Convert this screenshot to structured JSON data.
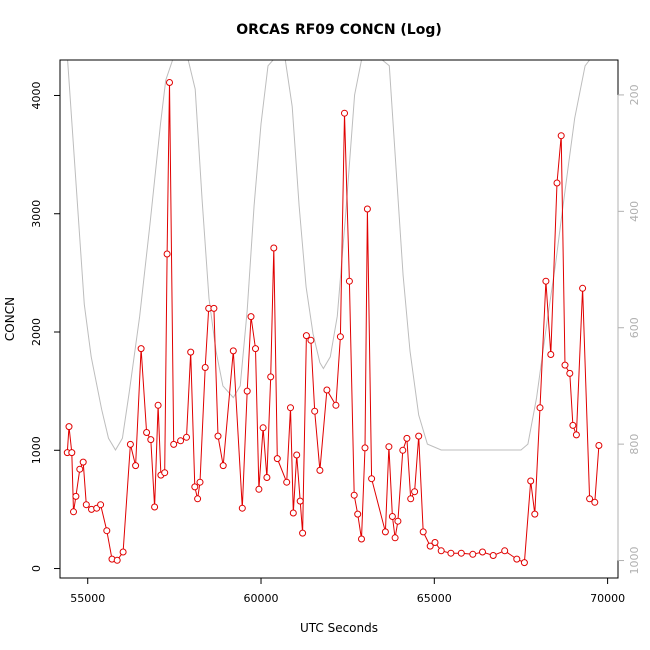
{
  "chart_data": {
    "type": "line",
    "title": "ORCAS RF09 CONCN (Log)",
    "xlabel": "UTC Seconds",
    "ylabel": "CONCN",
    "xlim": [
      54200,
      70300
    ],
    "ylim": [
      -80,
      4300
    ],
    "y2lim_top_to_bottom": [
      140,
      1030
    ],
    "x_ticks": [
      55000,
      60000,
      65000,
      70000
    ],
    "y_ticks": [
      0,
      1000,
      2000,
      3000,
      4000
    ],
    "y2_ticks": [
      200,
      400,
      600,
      800,
      1000
    ],
    "colors": {
      "primary": "#e00000",
      "secondary": "#bdbdbd",
      "axis": "#000000",
      "y2_axis": "#b0b0b0"
    },
    "series": [
      {
        "values": [
          [
            54410,
            980
          ],
          [
            54460,
            1200
          ],
          [
            54540,
            980
          ],
          [
            54590,
            480
          ],
          [
            54660,
            610
          ],
          [
            54770,
            840
          ],
          [
            54870,
            900
          ],
          [
            54960,
            540
          ],
          [
            55110,
            500
          ],
          [
            55260,
            510
          ],
          [
            55370,
            540
          ],
          [
            55550,
            320
          ],
          [
            55700,
            80
          ],
          [
            55850,
            70
          ],
          [
            56020,
            140
          ],
          [
            56230,
            1050
          ],
          [
            56380,
            870
          ],
          [
            56540,
            1860
          ],
          [
            56700,
            1150
          ],
          [
            56820,
            1090
          ],
          [
            56930,
            520
          ],
          [
            57030,
            1380
          ],
          [
            57110,
            790
          ],
          [
            57220,
            810
          ],
          [
            57290,
            2660
          ],
          [
            57360,
            4110
          ],
          [
            57480,
            1050
          ],
          [
            57680,
            1080
          ],
          [
            57850,
            1110
          ],
          [
            57970,
            1830
          ],
          [
            58090,
            690
          ],
          [
            58170,
            590
          ],
          [
            58240,
            730
          ],
          [
            58390,
            1700
          ],
          [
            58490,
            2200
          ],
          [
            58640,
            2200
          ],
          [
            58760,
            1120
          ],
          [
            58910,
            870
          ],
          [
            59200,
            1840
          ],
          [
            59460,
            510
          ],
          [
            59600,
            1500
          ],
          [
            59710,
            2130
          ],
          [
            59840,
            1860
          ],
          [
            59940,
            670
          ],
          [
            60060,
            1190
          ],
          [
            60170,
            770
          ],
          [
            60280,
            1620
          ],
          [
            60370,
            2710
          ],
          [
            60470,
            930
          ],
          [
            60740,
            730
          ],
          [
            60850,
            1360
          ],
          [
            60930,
            470
          ],
          [
            61030,
            960
          ],
          [
            61130,
            570
          ],
          [
            61200,
            300
          ],
          [
            61310,
            1970
          ],
          [
            61440,
            1930
          ],
          [
            61550,
            1330
          ],
          [
            61700,
            830
          ],
          [
            61900,
            1510
          ],
          [
            62160,
            1380
          ],
          [
            62290,
            1960
          ],
          [
            62410,
            3850
          ],
          [
            62550,
            2430
          ],
          [
            62690,
            620
          ],
          [
            62790,
            460
          ],
          [
            62900,
            250
          ],
          [
            63000,
            1020
          ],
          [
            63070,
            3040
          ],
          [
            63190,
            760
          ],
          [
            63590,
            310
          ],
          [
            63690,
            1030
          ],
          [
            63790,
            440
          ],
          [
            63870,
            260
          ],
          [
            63950,
            400
          ],
          [
            64090,
            1000
          ],
          [
            64210,
            1100
          ],
          [
            64320,
            590
          ],
          [
            64430,
            650
          ],
          [
            64550,
            1120
          ],
          [
            64680,
            310
          ],
          [
            64880,
            190
          ],
          [
            65020,
            220
          ],
          [
            65200,
            150
          ],
          [
            65480,
            130
          ],
          [
            65780,
            130
          ],
          [
            66110,
            120
          ],
          [
            66390,
            140
          ],
          [
            66700,
            110
          ],
          [
            67030,
            150
          ],
          [
            67380,
            80
          ],
          [
            67600,
            50
          ],
          [
            67780,
            740
          ],
          [
            67900,
            460
          ],
          [
            68050,
            1360
          ],
          [
            68220,
            2430
          ],
          [
            68360,
            1810
          ],
          [
            68540,
            3260
          ],
          [
            68660,
            3660
          ],
          [
            68770,
            1720
          ],
          [
            68910,
            1650
          ],
          [
            69000,
            1210
          ],
          [
            69100,
            1130
          ],
          [
            69280,
            2370
          ],
          [
            69480,
            590
          ],
          [
            69630,
            560
          ],
          [
            69750,
            1040
          ]
        ]
      },
      {
        "values": [
          [
            54420,
            140
          ],
          [
            54900,
            560
          ],
          [
            55100,
            650
          ],
          [
            55400,
            740
          ],
          [
            55600,
            790
          ],
          [
            55800,
            810
          ],
          [
            56000,
            790
          ],
          [
            56200,
            710
          ],
          [
            56500,
            580
          ],
          [
            56800,
            420
          ],
          [
            57100,
            250
          ],
          [
            57250,
            175
          ],
          [
            57450,
            140
          ],
          [
            57900,
            140
          ],
          [
            58100,
            190
          ],
          [
            58300,
            380
          ],
          [
            58500,
            550
          ],
          [
            58700,
            640
          ],
          [
            58900,
            700
          ],
          [
            59200,
            720
          ],
          [
            59400,
            700
          ],
          [
            59600,
            570
          ],
          [
            59800,
            390
          ],
          [
            60000,
            250
          ],
          [
            60200,
            150
          ],
          [
            60350,
            140
          ],
          [
            60700,
            140
          ],
          [
            60900,
            220
          ],
          [
            61100,
            390
          ],
          [
            61300,
            530
          ],
          [
            61500,
            610
          ],
          [
            61700,
            660
          ],
          [
            61800,
            670
          ],
          [
            62000,
            650
          ],
          [
            62200,
            580
          ],
          [
            62450,
            400
          ],
          [
            62700,
            200
          ],
          [
            62900,
            140
          ],
          [
            63100,
            140
          ],
          [
            63500,
            140
          ],
          [
            63700,
            150
          ],
          [
            63900,
            330
          ],
          [
            64100,
            510
          ],
          [
            64300,
            640
          ],
          [
            64550,
            750
          ],
          [
            64800,
            800
          ],
          [
            65200,
            810
          ],
          [
            65700,
            810
          ],
          [
            66500,
            810
          ],
          [
            67000,
            810
          ],
          [
            67500,
            810
          ],
          [
            67700,
            800
          ],
          [
            67950,
            720
          ],
          [
            68250,
            590
          ],
          [
            68500,
            490
          ],
          [
            68650,
            420
          ],
          [
            68850,
            330
          ],
          [
            69050,
            240
          ],
          [
            69350,
            150
          ],
          [
            69480,
            140
          ]
        ]
      }
    ]
  }
}
